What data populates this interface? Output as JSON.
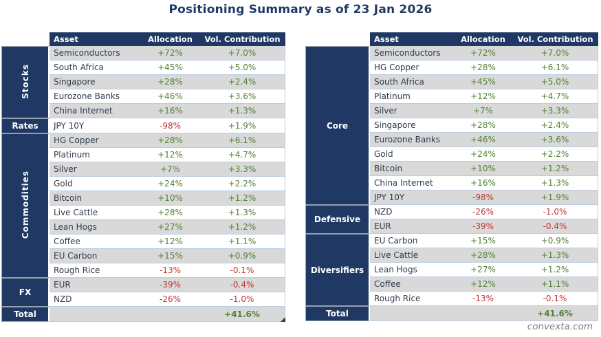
{
  "title": "Positioning Summary as of 23 Jan 2026",
  "watermark": "convexta.com",
  "colors": {
    "navy": "#1F3864",
    "positive_green": "#548235",
    "negative_red": "#C23535",
    "stripe_gray": "#D9D9D9",
    "gridline_blue": "#B9CDE2"
  },
  "columns": [
    "Asset",
    "Allocation",
    "Vol. Contribution"
  ],
  "tables": [
    {
      "name": "by-asset-class",
      "groups": [
        {
          "label": "Stocks",
          "rotated": true,
          "rows": [
            [
              "Semiconductors",
              "+72%",
              "+7.0%"
            ],
            [
              "South Africa",
              "+45%",
              "+5.0%"
            ],
            [
              "Singapore",
              "+28%",
              "+2.4%"
            ],
            [
              "Eurozone Banks",
              "+46%",
              "+3.6%"
            ],
            [
              "China Internet",
              "+16%",
              "+1.3%"
            ]
          ]
        },
        {
          "label": "Rates",
          "rotated": false,
          "rows": [
            [
              "JPY 10Y",
              "-98%",
              "+1.9%"
            ]
          ]
        },
        {
          "label": "Commodities",
          "rotated": true,
          "rows": [
            [
              "HG Copper",
              "+28%",
              "+6.1%"
            ],
            [
              "Platinum",
              "+12%",
              "+4.7%"
            ],
            [
              "Silver",
              "+7%",
              "+3.3%"
            ],
            [
              "Gold",
              "+24%",
              "+2.2%"
            ],
            [
              "Bitcoin",
              "+10%",
              "+1.2%"
            ],
            [
              "Live Cattle",
              "+28%",
              "+1.3%"
            ],
            [
              "Lean Hogs",
              "+27%",
              "+1.2%"
            ],
            [
              "Coffee",
              "+12%",
              "+1.1%"
            ],
            [
              "EU Carbon",
              "+15%",
              "+0.9%"
            ],
            [
              "Rough Rice",
              "-13%",
              "-0.1%"
            ]
          ]
        },
        {
          "label": "FX",
          "rotated": false,
          "rows": [
            [
              "EUR",
              "-39%",
              "-0.4%"
            ],
            [
              "NZD",
              "-26%",
              "-1.0%"
            ]
          ]
        }
      ],
      "total_label": "Total",
      "total_value": "+41.6%"
    },
    {
      "name": "by-role",
      "groups": [
        {
          "label": "Core",
          "rotated": false,
          "rows": [
            [
              "Semiconductors",
              "+72%",
              "+7.0%"
            ],
            [
              "HG Copper",
              "+28%",
              "+6.1%"
            ],
            [
              "South Africa",
              "+45%",
              "+5.0%"
            ],
            [
              "Platinum",
              "+12%",
              "+4.7%"
            ],
            [
              "Silver",
              "+7%",
              "+3.3%"
            ],
            [
              "Singapore",
              "+28%",
              "+2.4%"
            ],
            [
              "Eurozone Banks",
              "+46%",
              "+3.6%"
            ],
            [
              "Gold",
              "+24%",
              "+2.2%"
            ],
            [
              "Bitcoin",
              "+10%",
              "+1.2%"
            ],
            [
              "China Internet",
              "+16%",
              "+1.3%"
            ],
            [
              "JPY 10Y",
              "-98%",
              "+1.9%"
            ]
          ]
        },
        {
          "label": "Defensive",
          "rotated": false,
          "rows": [
            [
              "NZD",
              "-26%",
              "-1.0%"
            ],
            [
              "EUR",
              "-39%",
              "-0.4%"
            ]
          ]
        },
        {
          "label": "Diversifiers",
          "rotated": false,
          "rows": [
            [
              "EU Carbon",
              "+15%",
              "+0.9%"
            ],
            [
              "Live Cattle",
              "+28%",
              "+1.3%"
            ],
            [
              "Lean Hogs",
              "+27%",
              "+1.2%"
            ],
            [
              "Coffee",
              "+12%",
              "+1.1%"
            ],
            [
              "Rough Rice",
              "-13%",
              "-0.1%"
            ]
          ]
        }
      ],
      "total_label": "Total",
      "total_value": "+41.6%"
    }
  ]
}
